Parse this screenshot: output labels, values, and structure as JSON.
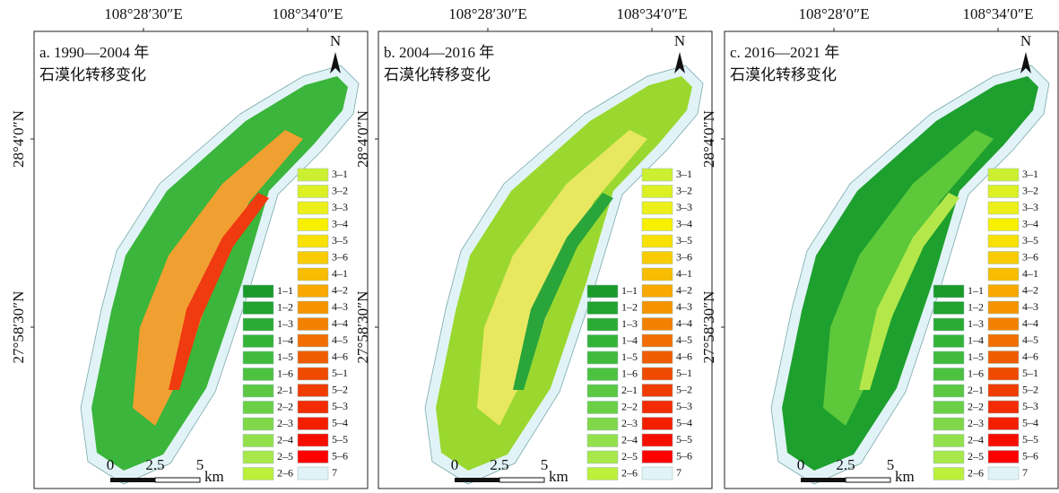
{
  "panels": [
    {
      "title": [
        "a. 1990—2004 年",
        "石漠化转移变化"
      ],
      "longitude_labels": [
        "108°28′30″E",
        "108°34′0″E"
      ],
      "latitude_labels": [
        "28°4′0″N",
        "27°58′30″N"
      ]
    },
    {
      "title": [
        "b. 2004—2016 年",
        "石漠化转移变化"
      ],
      "longitude_labels": [
        "108°28′30″E",
        "108°34′0″E"
      ],
      "latitude_labels": [
        "28°4′0″N",
        "27°58′30″N"
      ]
    },
    {
      "title": [
        "c. 2016—2021 年",
        "石漠化转移变化"
      ],
      "longitude_labels": [
        "108°28′0″E",
        "108°34′0″E"
      ],
      "latitude_labels": [
        "28°4′0″N",
        "27°58′30″N"
      ]
    }
  ],
  "legend": [
    {
      "label": "1–1",
      "color": "#1a9a2a"
    },
    {
      "label": "1–2",
      "color": "#22a22e"
    },
    {
      "label": "1–3",
      "color": "#2aab33"
    },
    {
      "label": "1–4",
      "color": "#34b338"
    },
    {
      "label": "1–5",
      "color": "#40bb3c"
    },
    {
      "label": "1–6",
      "color": "#4cc240"
    },
    {
      "label": "2–1",
      "color": "#5cc844"
    },
    {
      "label": "2–2",
      "color": "#6cd046"
    },
    {
      "label": "2–3",
      "color": "#80d848"
    },
    {
      "label": "2–4",
      "color": "#94e04a"
    },
    {
      "label": "2–5",
      "color": "#a8e84a"
    },
    {
      "label": "2–6",
      "color": "#bcf03a"
    },
    {
      "label": "3–1",
      "color": "#ccf030"
    },
    {
      "label": "3–2",
      "color": "#dcf024"
    },
    {
      "label": "3–3",
      "color": "#ecf018"
    },
    {
      "label": "3–4",
      "color": "#f8f000"
    },
    {
      "label": "3–5",
      "color": "#f8e000"
    },
    {
      "label": "3–6",
      "color": "#f8cc00"
    },
    {
      "label": "4–1",
      "color": "#f8bc00"
    },
    {
      "label": "4–2",
      "color": "#f8a800"
    },
    {
      "label": "4–3",
      "color": "#f69400"
    },
    {
      "label": "4–4",
      "color": "#f48000"
    },
    {
      "label": "4–5",
      "color": "#f26e00"
    },
    {
      "label": "4–6",
      "color": "#f05c00"
    },
    {
      "label": "5–1",
      "color": "#f04a00"
    },
    {
      "label": "5–2",
      "color": "#f03c00"
    },
    {
      "label": "5–3",
      "color": "#f22c00"
    },
    {
      "label": "5–4",
      "color": "#f41e00"
    },
    {
      "label": "5–5",
      "color": "#f80e00"
    },
    {
      "label": "5–6",
      "color": "#ff0000"
    },
    {
      "label": "7",
      "color": "#e2f3f8"
    }
  ],
  "scale_bar": {
    "labels": [
      "0",
      "2.5",
      "5"
    ],
    "unit": "km"
  },
  "north": "N"
}
